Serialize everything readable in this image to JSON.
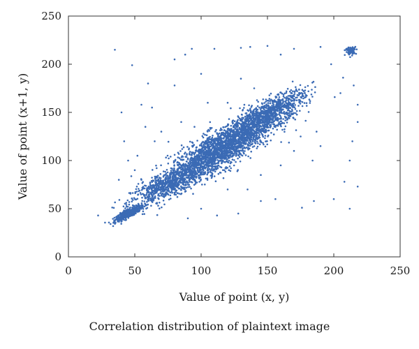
{
  "caption": "Correlation distribution of plaintext image",
  "chart_data": {
    "type": "scatter",
    "title": "",
    "xlabel": "Value of point (x, y)",
    "ylabel": "Value of point (x+1, y)",
    "xlim": [
      0,
      250
    ],
    "ylim": [
      0,
      250
    ],
    "xticks": [
      0,
      50,
      100,
      150,
      200,
      250
    ],
    "yticks": [
      0,
      50,
      100,
      150,
      200,
      250
    ],
    "grid": false,
    "marker_color": "#3b6bb5",
    "series": [
      {
        "values_description_free": true,
        "clusters": [
          {
            "center": [
              45,
              45
            ],
            "spread": [
              5,
              4
            ],
            "count": 450,
            "corr": 0.85
          },
          {
            "center": [
              75,
              75
            ],
            "spread": [
              14,
              11
            ],
            "count": 700,
            "corr": 0.8
          },
          {
            "center": [
              115,
              112
            ],
            "spread": [
              20,
              18
            ],
            "count": 2200,
            "corr": 0.82
          },
          {
            "center": [
              150,
              148
            ],
            "spread": [
              14,
              12
            ],
            "count": 900,
            "corr": 0.8
          },
          {
            "center": [
              213,
              214
            ],
            "spread": [
              2,
              2
            ],
            "count": 90,
            "corr": 0.2
          }
        ],
        "outliers": [
          [
            35,
            215
          ],
          [
            48,
            199
          ],
          [
            55,
            158
          ],
          [
            80,
            178
          ],
          [
            80,
            205
          ],
          [
            88,
            210
          ],
          [
            93,
            216
          ],
          [
            100,
            190
          ],
          [
            110,
            216
          ],
          [
            130,
            217
          ],
          [
            137,
            218
          ],
          [
            150,
            219
          ],
          [
            160,
            210
          ],
          [
            170,
            216
          ],
          [
            190,
            218
          ],
          [
            198,
            200
          ],
          [
            205,
            170
          ],
          [
            207,
            186
          ],
          [
            215,
            178
          ],
          [
            218,
            158
          ],
          [
            218,
            140
          ],
          [
            214,
            120
          ],
          [
            212,
            100
          ],
          [
            218,
            73
          ],
          [
            212,
            50
          ],
          [
            200,
            60
          ],
          [
            208,
            78
          ],
          [
            184,
            100
          ],
          [
            190,
            115
          ],
          [
            187,
            130
          ],
          [
            178,
            170
          ],
          [
            169,
            182
          ],
          [
            156,
            60
          ],
          [
            145,
            58
          ],
          [
            128,
            45
          ],
          [
            112,
            43
          ],
          [
            100,
            50
          ],
          [
            90,
            40
          ],
          [
            63,
            155
          ],
          [
            60,
            180
          ],
          [
            58,
            135
          ],
          [
            52,
            105
          ],
          [
            40,
            150
          ],
          [
            42,
            120
          ],
          [
            45,
            100
          ],
          [
            38,
            80
          ],
          [
            185,
            58
          ],
          [
            176,
            51
          ],
          [
            120,
            160
          ],
          [
            130,
            185
          ],
          [
            140,
            175
          ],
          [
            95,
            135
          ],
          [
            85,
            140
          ],
          [
            105,
            160
          ],
          [
            160,
            95
          ],
          [
            170,
            110
          ],
          [
            175,
            125
          ],
          [
            145,
            85
          ],
          [
            135,
            70
          ],
          [
            120,
            70
          ],
          [
            70,
            130
          ],
          [
            65,
            120
          ],
          [
            50,
            90
          ],
          [
            55,
            80
          ]
        ]
      }
    ]
  }
}
